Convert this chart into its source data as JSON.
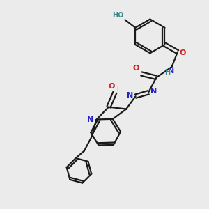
{
  "bg_color": "#ebebeb",
  "bond_color": "#1a1a1a",
  "N_color": "#2222cc",
  "O_color": "#cc2222",
  "HO_color": "#3a8888",
  "line_width": 1.6,
  "figsize": [
    3.0,
    3.0
  ],
  "dpi": 100,
  "xlim": [
    0,
    10
  ],
  "ylim": [
    0,
    10
  ]
}
